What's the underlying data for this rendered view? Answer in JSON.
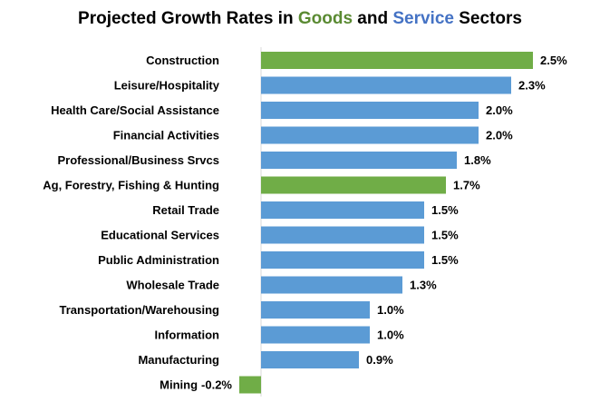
{
  "chart_data": {
    "type": "bar",
    "orientation": "horizontal",
    "title": {
      "parts": [
        {
          "text": "Projected Growth Rates in ",
          "role": "plain"
        },
        {
          "text": "Goods",
          "role": "goods"
        },
        {
          "text": " and ",
          "role": "plain"
        },
        {
          "text": "Service",
          "role": "service"
        },
        {
          "text": " Sectors",
          "role": "plain"
        }
      ]
    },
    "xlabel": "",
    "ylabel": "",
    "grid": false,
    "legend": "none",
    "unit": "%",
    "xlim": [
      -0.2,
      2.5
    ],
    "colors": {
      "goods": "#70ad47",
      "service": "#5b9bd5"
    },
    "categories": [
      "Construction",
      "Leisure/Hospitality",
      "Health Care/Social Assistance",
      "Financial Activities",
      "Professional/Business Srvcs",
      "Ag, Forestry, Fishing & Hunting",
      "Retail Trade",
      "Educational Services",
      "Public Administration",
      "Wholesale Trade",
      "Transportation/Warehousing",
      "Information",
      "Manufacturing",
      "Mining"
    ],
    "values": [
      2.5,
      2.3,
      2.0,
      2.0,
      1.8,
      1.7,
      1.5,
      1.5,
      1.5,
      1.3,
      1.0,
      1.0,
      0.9,
      -0.2
    ],
    "value_labels": [
      "2.5%",
      "2.3%",
      "2.0%",
      "2.0%",
      "1.8%",
      "1.7%",
      "1.5%",
      "1.5%",
      "1.5%",
      "1.3%",
      "1.0%",
      "1.0%",
      "0.9%",
      "-0.2%"
    ],
    "sector": [
      "goods",
      "service",
      "service",
      "service",
      "service",
      "goods",
      "service",
      "service",
      "service",
      "service",
      "service",
      "service",
      "service",
      "goods"
    ]
  }
}
